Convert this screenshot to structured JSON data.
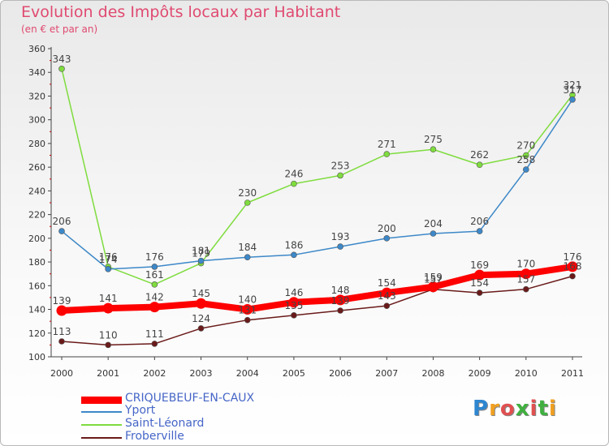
{
  "title": "Evolution des Impôts locaux par Habitant",
  "subtitle": "(en € et par an)",
  "logo": {
    "text": "Proxiti",
    "letters": [
      "P",
      "r",
      "o",
      "x",
      "i",
      "t",
      "i"
    ],
    "colors": [
      "#2e86d0",
      "#f0a020",
      "#e05050",
      "#40b040",
      "#e05050",
      "#40b040",
      "#f0a020"
    ]
  },
  "chart_data": {
    "type": "line",
    "x": [
      "2000",
      "2001",
      "2002",
      "2003",
      "2004",
      "2005",
      "2006",
      "2007",
      "2008",
      "2009",
      "2010",
      "2011"
    ],
    "ylim": [
      100,
      360
    ],
    "yticks": [
      100,
      120,
      140,
      160,
      180,
      200,
      220,
      240,
      260,
      280,
      300,
      320,
      340,
      360
    ],
    "grid": false,
    "legend_position": "bottom-left",
    "series": [
      {
        "name": "CRIQUEBEUF-EN-CAUX",
        "color": "#ff0000",
        "values": [
          139,
          141,
          142,
          145,
          140,
          146,
          148,
          154,
          159,
          169,
          170,
          176
        ],
        "labels": [
          "139",
          "141",
          "142",
          "145",
          "140",
          "146",
          "148",
          "154",
          "159",
          "169",
          "170",
          "176"
        ]
      },
      {
        "name": "Yport",
        "color": "#3d88c8",
        "values": [
          206,
          174,
          176,
          181,
          184,
          186,
          193,
          200,
          204,
          206,
          258,
          317
        ],
        "labels": [
          "206",
          "174",
          "176",
          "181",
          "184",
          "186",
          "193",
          "200",
          "204",
          "206",
          "258",
          "317"
        ]
      },
      {
        "name": "Saint-Léonard",
        "color": "#7fdc3e",
        "values": [
          343,
          176,
          161,
          179,
          230,
          246,
          253,
          271,
          275,
          262,
          270,
          321
        ],
        "labels": [
          "343",
          "176",
          "161",
          "179",
          "230",
          "246",
          "253",
          "271",
          "275",
          "262",
          "270",
          "321"
        ]
      },
      {
        "name": "Froberville",
        "color": "#6a1a1a",
        "values": [
          113,
          110,
          111,
          124,
          131,
          135,
          139,
          143,
          157,
          154,
          157,
          168
        ],
        "labels": [
          "113",
          "110",
          "111",
          "124",
          "131",
          "135",
          "139",
          "143",
          "157",
          "154",
          "157",
          "168"
        ]
      }
    ]
  }
}
